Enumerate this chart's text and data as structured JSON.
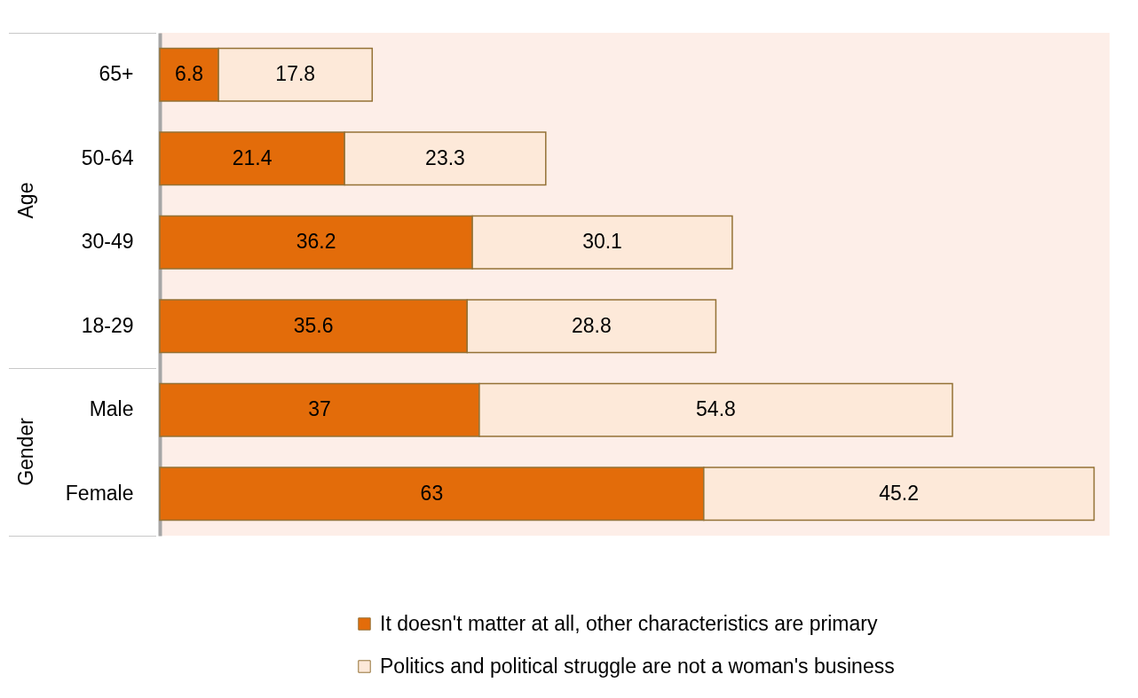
{
  "chart_data": {
    "type": "bar",
    "orientation": "horizontal",
    "stacked": true,
    "data_labels": true,
    "legend": "bottom",
    "categories": [
      "65+",
      "50-64",
      "30-49",
      "18-29",
      "Male",
      "Female"
    ],
    "annotations": [
      "Age",
      "Gender"
    ],
    "series": [
      {
        "name": "It doesn't matter at all, other characteristics are primary",
        "color": "#e36c0a",
        "values": [
          6.8,
          21.4,
          36.2,
          35.6,
          37,
          63
        ]
      },
      {
        "name": "Politics and political struggle are not a woman's business",
        "color": "#fde9d9",
        "values": [
          17.8,
          23.3,
          30.1,
          28.8,
          54.8,
          45.2
        ]
      }
    ]
  }
}
